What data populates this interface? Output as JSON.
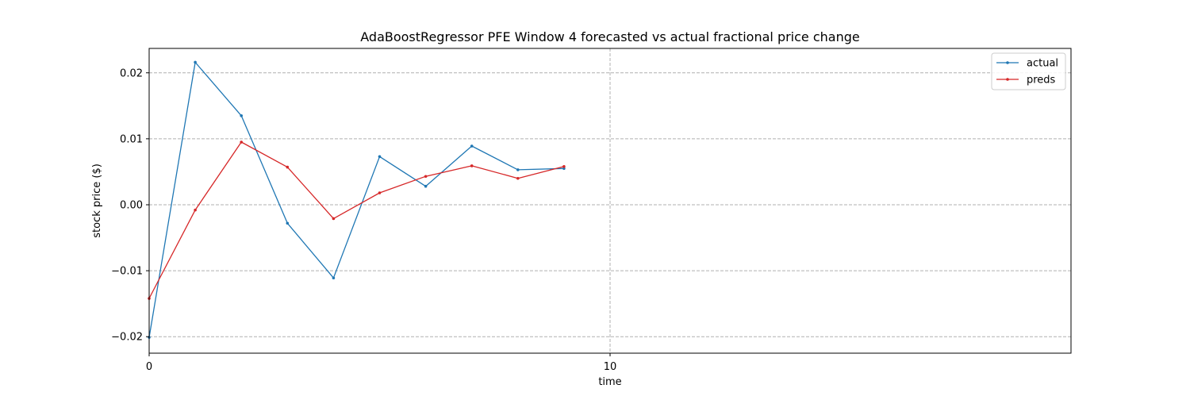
{
  "chart_data": {
    "type": "line",
    "title": "AdaBoostRegressor PFE Window 4 forecasted vs actual fractional price change",
    "xlabel": "time",
    "ylabel": "stock price ($)",
    "xlim": [
      0,
      20
    ],
    "ylim": [
      -0.0225,
      0.0237
    ],
    "xticks": [
      0,
      10
    ],
    "xtick_labels": [
      "0",
      "10"
    ],
    "yticks": [
      -0.02,
      -0.01,
      0.0,
      0.01,
      0.02
    ],
    "ytick_labels": [
      "−0.02",
      "−0.01",
      "0.00",
      "0.01",
      "0.02"
    ],
    "grid": true,
    "legend_position": "top-right",
    "x": [
      0,
      1,
      2,
      3,
      4,
      5,
      6,
      7,
      8,
      9
    ],
    "series": [
      {
        "name": "actual",
        "color": "#1f77b4",
        "values": [
          -0.0201,
          0.0216,
          0.0135,
          -0.0028,
          -0.0111,
          0.0073,
          0.0028,
          0.0089,
          0.0053,
          0.0055
        ]
      },
      {
        "name": "preds",
        "color": "#d62728",
        "values": [
          -0.0142,
          -0.0008,
          0.0095,
          0.0057,
          -0.0021,
          0.0018,
          0.0043,
          0.0059,
          0.004,
          0.0058
        ]
      }
    ]
  }
}
